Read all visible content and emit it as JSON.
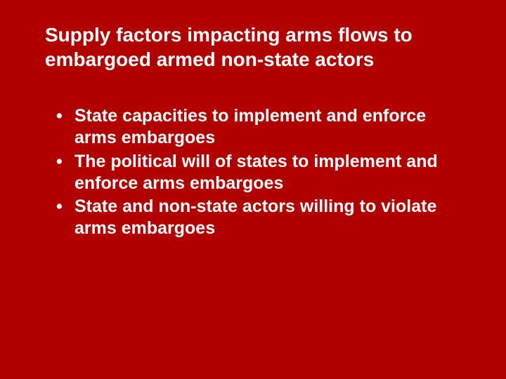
{
  "slide": {
    "background_color": "#b00000",
    "text_color": "#ffffff",
    "title": "Supply factors impacting arms flows to embargoed armed non-state actors",
    "title_fontsize": 28,
    "title_fontweight": "bold",
    "bullet_fontsize": 25,
    "bullet_fontweight": "bold",
    "bullets": [
      "State capacities to implement and enforce arms embargoes",
      "The political will of states to implement and enforce arms embargoes",
      "State and non-state actors willing to violate arms embargoes"
    ]
  }
}
